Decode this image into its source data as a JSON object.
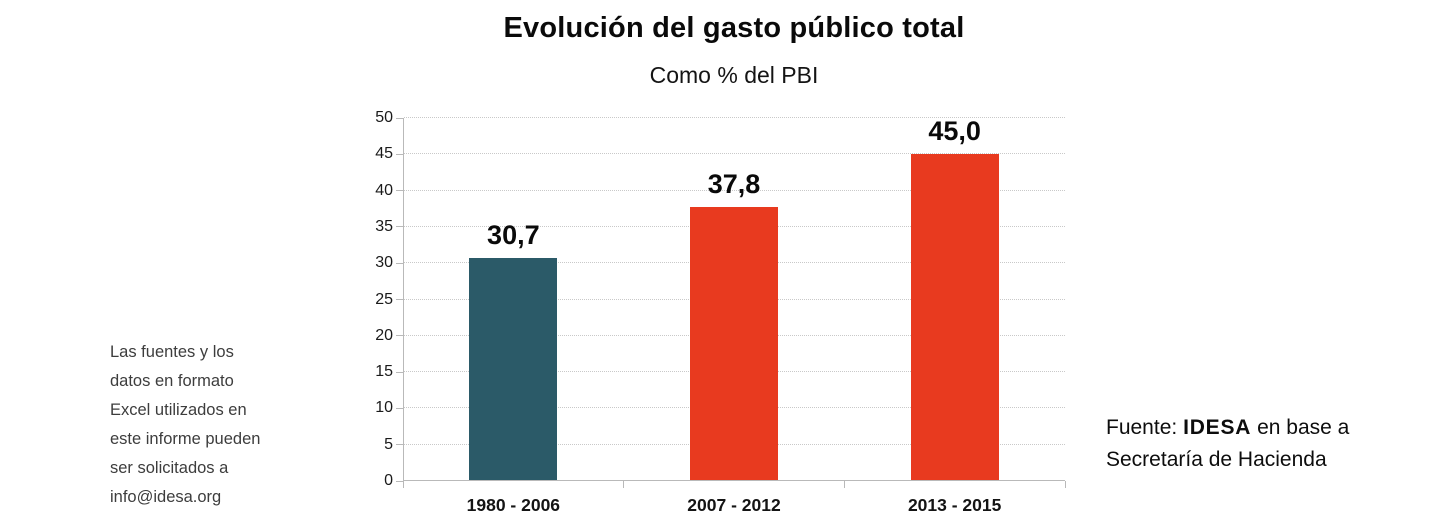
{
  "title": "Evolución del gasto público total",
  "subtitle": "Como % del PBI",
  "left_note": "Las fuentes y los\ndatos en formato\nExcel utilizados en\neste informe pueden\nser solicitados a\ninfo@idesa.org",
  "source": {
    "prefix": "Fuente: ",
    "org": "IDESA",
    "suffix": " en base a Secretaría de Hacienda"
  },
  "chart_data": {
    "type": "bar",
    "title": "Evolución del gasto público total",
    "subtitle": "Como % del PBI",
    "categories": [
      "1980 - 2006",
      "2007 - 2012",
      "2013 - 2015"
    ],
    "values": [
      30.7,
      37.8,
      45.0
    ],
    "value_labels": [
      "30,7",
      "37,8",
      "45,0"
    ],
    "bar_colors": [
      "#2b5a68",
      "#e83a1f",
      "#e83a1f"
    ],
    "xlabel": "",
    "ylabel": "",
    "ylim": [
      0,
      50
    ],
    "ytick_step": 5,
    "grid": true,
    "legend": false
  }
}
